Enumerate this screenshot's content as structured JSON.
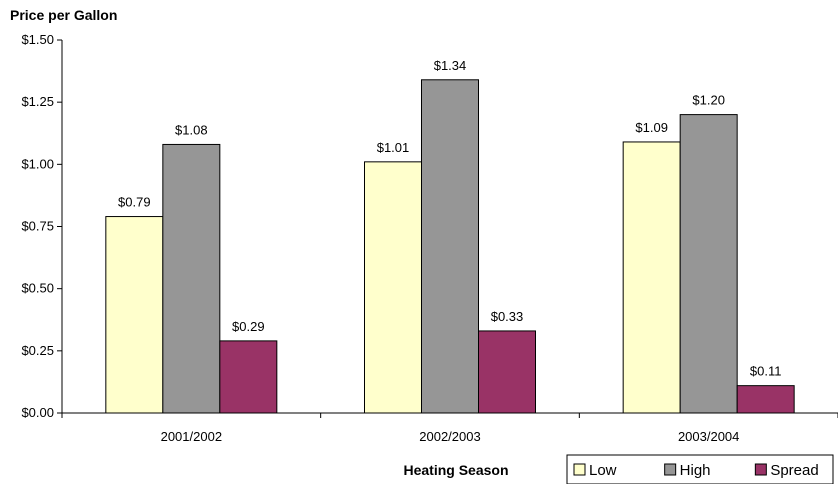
{
  "chart_data": {
    "type": "bar",
    "ylabel": "Price per Gallon",
    "xlabel": "Heating Season",
    "categories": [
      "2001/2002",
      "2002/2003",
      "2003/2004"
    ],
    "series": [
      {
        "name": "Low",
        "values": [
          0.79,
          1.01,
          1.09
        ],
        "labels": [
          "$0.79",
          "$1.01",
          "$1.09"
        ],
        "color": "#FFFFCC"
      },
      {
        "name": "High",
        "values": [
          1.08,
          1.34,
          1.2
        ],
        "labels": [
          "$1.08",
          "$1.34",
          "$1.20"
        ],
        "color": "#969696"
      },
      {
        "name": "Spread",
        "values": [
          0.29,
          0.33,
          0.11
        ],
        "labels": [
          "$0.29",
          "$0.33",
          "$0.11"
        ],
        "color": "#993366"
      }
    ],
    "ylim": [
      0,
      1.5
    ],
    "yticks": [
      0,
      0.25,
      0.5,
      0.75,
      1.0,
      1.25,
      1.5
    ],
    "ytick_labels": [
      "$0.00",
      "$0.25",
      "$0.50",
      "$0.75",
      "$1.00",
      "$1.25",
      "$1.50"
    ],
    "grid": false,
    "legend": "bottom-right"
  }
}
